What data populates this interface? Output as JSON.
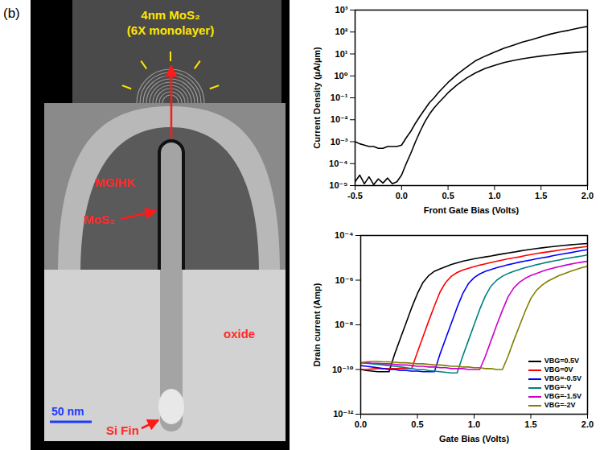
{
  "panel_label": "(b)",
  "micrograph": {
    "inset_label": [
      "4nm MoS₂",
      "(6X monolayer)"
    ],
    "labels": [
      "MG/HK",
      "MoS₂",
      "oxide",
      "Si Fin"
    ],
    "scale_bar": "50 nm"
  },
  "chart_data": [
    {
      "type": "line",
      "xlabel": "Front Gate Bias (Volts)",
      "ylabel": "Current Density (µA/µm)",
      "log": "y",
      "grid": false,
      "xlim": [
        -0.5,
        2.0
      ],
      "ylim": [
        1e-05,
        1000
      ],
      "xticks": [
        -0.5,
        {
          "value": 0,
          "label": "0.0"
        },
        0.5,
        {
          "value": 1,
          "label": "1.0"
        },
        1.5,
        {
          "value": 2,
          "label": "2.0"
        }
      ],
      "yticks": [
        {
          "value": 1e-05,
          "label": "10⁻⁵"
        },
        {
          "value": 0.0001,
          "label": "10⁻⁴"
        },
        {
          "value": 0.001,
          "label": "10⁻³"
        },
        {
          "value": 0.01,
          "label": "10⁻²"
        },
        {
          "value": 0.1,
          "label": "10⁻¹"
        },
        {
          "value": 1,
          "label": "10⁰"
        },
        {
          "value": 10,
          "label": "10¹"
        },
        {
          "value": 100,
          "label": "10²"
        },
        {
          "value": 1000,
          "label": "10³"
        }
      ],
      "x": [
        -0.5,
        -0.45,
        -0.4,
        -0.35,
        -0.3,
        -0.25,
        -0.2,
        -0.15,
        -0.1,
        -0.05,
        0,
        0.05,
        0.1,
        0.15,
        0.2,
        0.25,
        0.3,
        0.35,
        0.4,
        0.45,
        0.5,
        0.6,
        0.7,
        0.8,
        0.9,
        1.0,
        1.1,
        1.2,
        1.3,
        1.4,
        1.5,
        1.6,
        1.7,
        1.8,
        1.9,
        2.0
      ],
      "series": [
        {
          "color": "#000000",
          "line_style": "solid",
          "marker": "none",
          "values": [
            0.001,
            0.0008,
            0.0007,
            0.0006,
            0.0006,
            0.0005,
            0.0005,
            0.0006,
            0.0006,
            0.0006,
            0.0007,
            0.0015,
            0.003,
            0.007,
            0.015,
            0.03,
            0.06,
            0.1,
            0.18,
            0.3,
            0.5,
            1.2,
            2.5,
            5,
            8,
            12,
            18,
            25,
            35,
            45,
            60,
            80,
            100,
            120,
            150,
            180
          ]
        },
        {
          "color": "#000000",
          "line_style": "solid",
          "marker": "none",
          "values": [
            1.5e-05,
            3e-05,
            1.2e-05,
            2.5e-05,
            1.1e-05,
            2e-05,
            1.3e-05,
            2.2e-05,
            1.2e-05,
            1.5e-05,
            3e-05,
            0.0001,
            0.0003,
            0.001,
            0.003,
            0.008,
            0.018,
            0.035,
            0.06,
            0.1,
            0.17,
            0.4,
            0.8,
            1.4,
            2.2,
            3,
            4,
            5,
            6,
            7,
            8,
            9,
            10,
            11,
            12,
            13
          ]
        }
      ]
    },
    {
      "type": "line",
      "xlabel": "Gate Bias (Volts)",
      "ylabel": "Drain current (Amp)",
      "log": "y",
      "grid": false,
      "legend": "bottom-right",
      "xlim": [
        0,
        2.0
      ],
      "ylim": [
        1e-12,
        0.0001
      ],
      "xticks": [
        {
          "value": 0,
          "label": "0.0"
        },
        0.5,
        {
          "value": 1,
          "label": "1.0"
        },
        1.5,
        {
          "value": 2,
          "label": "2.0"
        }
      ],
      "yticks": [
        {
          "value": 1e-12,
          "label": "10⁻¹²"
        },
        {
          "value": 1e-10,
          "label": "10⁻¹⁰"
        },
        {
          "value": 1e-08,
          "label": "10⁻⁸"
        },
        {
          "value": 1e-06,
          "label": "10⁻⁶"
        },
        {
          "value": 0.0001,
          "label": "10⁻⁴"
        }
      ],
      "x": [
        0,
        0.05,
        0.1,
        0.15,
        0.2,
        0.25,
        0.3,
        0.35,
        0.4,
        0.45,
        0.5,
        0.55,
        0.6,
        0.65,
        0.7,
        0.75,
        0.8,
        0.85,
        0.9,
        0.95,
        1.0,
        1.05,
        1.1,
        1.15,
        1.2,
        1.25,
        1.3,
        1.35,
        1.4,
        1.45,
        1.5,
        1.55,
        1.6,
        1.65,
        1.7,
        1.75,
        1.8,
        1.85,
        1.9,
        1.95,
        2.0
      ],
      "series": [
        {
          "name": "VBG=0.5V",
          "color": "#000000",
          "line_style": "solid",
          "marker": "none",
          "values": [
            1e-10,
            9e-11,
            8.5e-11,
            8e-11,
            8e-11,
            8e-11,
            5e-10,
            2.5e-09,
            1.2e-08,
            6e-08,
            2.5e-07,
            8e-07,
            1.6e-06,
            2.5e-06,
            3.2e-06,
            4e-06,
            5e-06,
            6e-06,
            7e-06,
            8e-06,
            9e-06,
            1e-05,
            1.1e-05,
            1.2e-05,
            1.35e-05,
            1.5e-05,
            1.65e-05,
            1.8e-05,
            2e-05,
            2.2e-05,
            2.4e-05,
            2.6e-05,
            2.8e-05,
            3e-05,
            3.2e-05,
            3.4e-05,
            3.6e-05,
            3.8e-05,
            4e-05,
            4.2e-05,
            4.4e-05
          ]
        },
        {
          "name": "VBG=0V",
          "color": "#ff0000",
          "line_style": "solid",
          "marker": "none",
          "values": [
            1e-10,
            1e-10,
            1.05e-10,
            1.1e-10,
            1.1e-10,
            1.1e-10,
            1.1e-10,
            1.1e-10,
            1.1e-10,
            1.1e-10,
            6e-10,
            3e-09,
            1.5e-08,
            7e-08,
            3e-07,
            8e-07,
            1.5e-06,
            2.2e-06,
            2.8e-06,
            3.4e-06,
            4e-06,
            4.7e-06,
            5.4e-06,
            6.2e-06,
            7e-06,
            8e-06,
            9e-06,
            1e-05,
            1.1e-05,
            1.25e-05,
            1.4e-05,
            1.55e-05,
            1.7e-05,
            1.85e-05,
            2e-05,
            2.2e-05,
            2.4e-05,
            2.6e-05,
            2.8e-05,
            3e-05,
            3.2e-05
          ]
        },
        {
          "name": "VBG=-0.5V",
          "color": "#0000ff",
          "line_style": "solid",
          "marker": "none",
          "values": [
            1.5e-10,
            1.4e-10,
            1.3e-10,
            1.2e-10,
            1.1e-10,
            1e-10,
            1e-10,
            9e-11,
            9e-11,
            8.5e-11,
            8.5e-11,
            8e-11,
            8e-11,
            8e-11,
            5e-10,
            2.5e-09,
            1.2e-08,
            6e-08,
            2.5e-07,
            7e-07,
            1.3e-06,
            1.9e-06,
            2.5e-06,
            3e-06,
            3.6e-06,
            4.2e-06,
            4.9e-06,
            5.6e-06,
            6.4e-06,
            7.2e-06,
            8e-06,
            9e-06,
            1e-05,
            1.1e-05,
            1.25e-05,
            1.4e-05,
            1.55e-05,
            1.7e-05,
            1.9e-05,
            2.1e-05,
            2.3e-05
          ]
        },
        {
          "name": "VBG=-V",
          "color": "#008080",
          "line_style": "solid",
          "marker": "none",
          "values": [
            2e-10,
            1.9e-10,
            1.8e-10,
            1.7e-10,
            1.6e-10,
            1.5e-10,
            1.4e-10,
            1.3e-10,
            1.2e-10,
            1.1e-10,
            1e-10,
            1e-10,
            9e-11,
            8.5e-11,
            8e-11,
            7.5e-11,
            7e-11,
            7e-11,
            4e-10,
            2e-09,
            1e-08,
            5e-08,
            2e-07,
            5.5e-07,
            1e-06,
            1.5e-06,
            2e-06,
            2.5e-06,
            3e-06,
            3.6e-06,
            4.2e-06,
            4.9e-06,
            5.6e-06,
            6.4e-06,
            7.2e-06,
            8e-06,
            9e-06,
            1e-05,
            1.1e-05,
            1.2e-05,
            1.35e-05
          ]
        },
        {
          "name": "VBG=-1.5V",
          "color": "#cc00cc",
          "line_style": "solid",
          "marker": "none",
          "values": [
            2e-10,
            2e-10,
            1.9e-10,
            1.9e-10,
            1.8e-10,
            1.8e-10,
            1.7e-10,
            1.6e-10,
            1.6e-10,
            1.5e-10,
            1.4e-10,
            1.4e-10,
            1.3e-10,
            1.3e-10,
            1.2e-10,
            1.2e-10,
            1.1e-10,
            1.1e-10,
            1.1e-10,
            1e-10,
            1e-10,
            1e-10,
            4e-10,
            2e-09,
            1e-08,
            4.5e-08,
            1.8e-07,
            4.5e-07,
            8e-07,
            1.2e-06,
            1.6e-06,
            2e-06,
            2.5e-06,
            3e-06,
            3.5e-06,
            4e-06,
            4.6e-06,
            5.2e-06,
            5.8e-06,
            6.4e-06,
            7e-06
          ]
        },
        {
          "name": "VBG=-2V",
          "color": "#808000",
          "line_style": "solid",
          "marker": "none",
          "values": [
            2e-10,
            2.2e-10,
            2.3e-10,
            2.3e-10,
            2.2e-10,
            2.2e-10,
            2.1e-10,
            2e-10,
            2e-10,
            1.9e-10,
            1.8e-10,
            1.8e-10,
            1.7e-10,
            1.6e-10,
            1.6e-10,
            1.5e-10,
            1.4e-10,
            1.4e-10,
            1.3e-10,
            1.3e-10,
            1.2e-10,
            1.2e-10,
            1.1e-10,
            1.1e-10,
            1e-10,
            1e-10,
            4e-10,
            2e-09,
            9e-09,
            4e-08,
            1.5e-07,
            3.5e-07,
            6e-07,
            9e-07,
            1.2e-06,
            1.6e-06,
            2e-06,
            2.5e-06,
            3e-06,
            3.6e-06,
            4.2e-06
          ]
        }
      ]
    }
  ]
}
